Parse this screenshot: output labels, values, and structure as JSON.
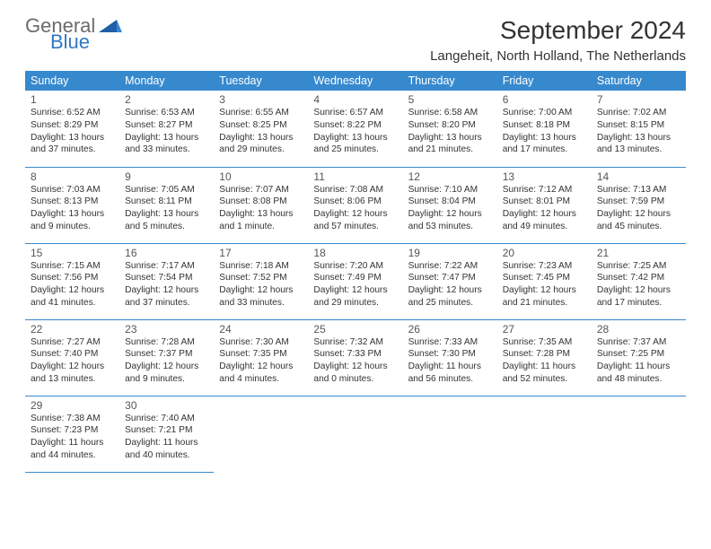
{
  "logo": {
    "general": "General",
    "blue": "Blue"
  },
  "header": {
    "month_title": "September 2024",
    "location": "Langeheit, North Holland, The Netherlands"
  },
  "colors": {
    "header_bg": "#3789ce",
    "header_text": "#ffffff",
    "cell_border": "#3789ce",
    "logo_gray": "#6b6b6b",
    "logo_blue": "#2f78c2",
    "text": "#333333"
  },
  "typography": {
    "month_title_fontsize": 28,
    "location_fontsize": 15,
    "dayheader_fontsize": 12.5,
    "daynum_fontsize": 12,
    "info_fontsize": 10.2
  },
  "day_headers": [
    "Sunday",
    "Monday",
    "Tuesday",
    "Wednesday",
    "Thursday",
    "Friday",
    "Saturday"
  ],
  "days": [
    {
      "n": "1",
      "sunrise": "Sunrise: 6:52 AM",
      "sunset": "Sunset: 8:29 PM",
      "daylight": "Daylight: 13 hours and 37 minutes."
    },
    {
      "n": "2",
      "sunrise": "Sunrise: 6:53 AM",
      "sunset": "Sunset: 8:27 PM",
      "daylight": "Daylight: 13 hours and 33 minutes."
    },
    {
      "n": "3",
      "sunrise": "Sunrise: 6:55 AM",
      "sunset": "Sunset: 8:25 PM",
      "daylight": "Daylight: 13 hours and 29 minutes."
    },
    {
      "n": "4",
      "sunrise": "Sunrise: 6:57 AM",
      "sunset": "Sunset: 8:22 PM",
      "daylight": "Daylight: 13 hours and 25 minutes."
    },
    {
      "n": "5",
      "sunrise": "Sunrise: 6:58 AM",
      "sunset": "Sunset: 8:20 PM",
      "daylight": "Daylight: 13 hours and 21 minutes."
    },
    {
      "n": "6",
      "sunrise": "Sunrise: 7:00 AM",
      "sunset": "Sunset: 8:18 PM",
      "daylight": "Daylight: 13 hours and 17 minutes."
    },
    {
      "n": "7",
      "sunrise": "Sunrise: 7:02 AM",
      "sunset": "Sunset: 8:15 PM",
      "daylight": "Daylight: 13 hours and 13 minutes."
    },
    {
      "n": "8",
      "sunrise": "Sunrise: 7:03 AM",
      "sunset": "Sunset: 8:13 PM",
      "daylight": "Daylight: 13 hours and 9 minutes."
    },
    {
      "n": "9",
      "sunrise": "Sunrise: 7:05 AM",
      "sunset": "Sunset: 8:11 PM",
      "daylight": "Daylight: 13 hours and 5 minutes."
    },
    {
      "n": "10",
      "sunrise": "Sunrise: 7:07 AM",
      "sunset": "Sunset: 8:08 PM",
      "daylight": "Daylight: 13 hours and 1 minute."
    },
    {
      "n": "11",
      "sunrise": "Sunrise: 7:08 AM",
      "sunset": "Sunset: 8:06 PM",
      "daylight": "Daylight: 12 hours and 57 minutes."
    },
    {
      "n": "12",
      "sunrise": "Sunrise: 7:10 AM",
      "sunset": "Sunset: 8:04 PM",
      "daylight": "Daylight: 12 hours and 53 minutes."
    },
    {
      "n": "13",
      "sunrise": "Sunrise: 7:12 AM",
      "sunset": "Sunset: 8:01 PM",
      "daylight": "Daylight: 12 hours and 49 minutes."
    },
    {
      "n": "14",
      "sunrise": "Sunrise: 7:13 AM",
      "sunset": "Sunset: 7:59 PM",
      "daylight": "Daylight: 12 hours and 45 minutes."
    },
    {
      "n": "15",
      "sunrise": "Sunrise: 7:15 AM",
      "sunset": "Sunset: 7:56 PM",
      "daylight": "Daylight: 12 hours and 41 minutes."
    },
    {
      "n": "16",
      "sunrise": "Sunrise: 7:17 AM",
      "sunset": "Sunset: 7:54 PM",
      "daylight": "Daylight: 12 hours and 37 minutes."
    },
    {
      "n": "17",
      "sunrise": "Sunrise: 7:18 AM",
      "sunset": "Sunset: 7:52 PM",
      "daylight": "Daylight: 12 hours and 33 minutes."
    },
    {
      "n": "18",
      "sunrise": "Sunrise: 7:20 AM",
      "sunset": "Sunset: 7:49 PM",
      "daylight": "Daylight: 12 hours and 29 minutes."
    },
    {
      "n": "19",
      "sunrise": "Sunrise: 7:22 AM",
      "sunset": "Sunset: 7:47 PM",
      "daylight": "Daylight: 12 hours and 25 minutes."
    },
    {
      "n": "20",
      "sunrise": "Sunrise: 7:23 AM",
      "sunset": "Sunset: 7:45 PM",
      "daylight": "Daylight: 12 hours and 21 minutes."
    },
    {
      "n": "21",
      "sunrise": "Sunrise: 7:25 AM",
      "sunset": "Sunset: 7:42 PM",
      "daylight": "Daylight: 12 hours and 17 minutes."
    },
    {
      "n": "22",
      "sunrise": "Sunrise: 7:27 AM",
      "sunset": "Sunset: 7:40 PM",
      "daylight": "Daylight: 12 hours and 13 minutes."
    },
    {
      "n": "23",
      "sunrise": "Sunrise: 7:28 AM",
      "sunset": "Sunset: 7:37 PM",
      "daylight": "Daylight: 12 hours and 9 minutes."
    },
    {
      "n": "24",
      "sunrise": "Sunrise: 7:30 AM",
      "sunset": "Sunset: 7:35 PM",
      "daylight": "Daylight: 12 hours and 4 minutes."
    },
    {
      "n": "25",
      "sunrise": "Sunrise: 7:32 AM",
      "sunset": "Sunset: 7:33 PM",
      "daylight": "Daylight: 12 hours and 0 minutes."
    },
    {
      "n": "26",
      "sunrise": "Sunrise: 7:33 AM",
      "sunset": "Sunset: 7:30 PM",
      "daylight": "Daylight: 11 hours and 56 minutes."
    },
    {
      "n": "27",
      "sunrise": "Sunrise: 7:35 AM",
      "sunset": "Sunset: 7:28 PM",
      "daylight": "Daylight: 11 hours and 52 minutes."
    },
    {
      "n": "28",
      "sunrise": "Sunrise: 7:37 AM",
      "sunset": "Sunset: 7:25 PM",
      "daylight": "Daylight: 11 hours and 48 minutes."
    },
    {
      "n": "29",
      "sunrise": "Sunrise: 7:38 AM",
      "sunset": "Sunset: 7:23 PM",
      "daylight": "Daylight: 11 hours and 44 minutes."
    },
    {
      "n": "30",
      "sunrise": "Sunrise: 7:40 AM",
      "sunset": "Sunset: 7:21 PM",
      "daylight": "Daylight: 11 hours and 40 minutes."
    }
  ]
}
